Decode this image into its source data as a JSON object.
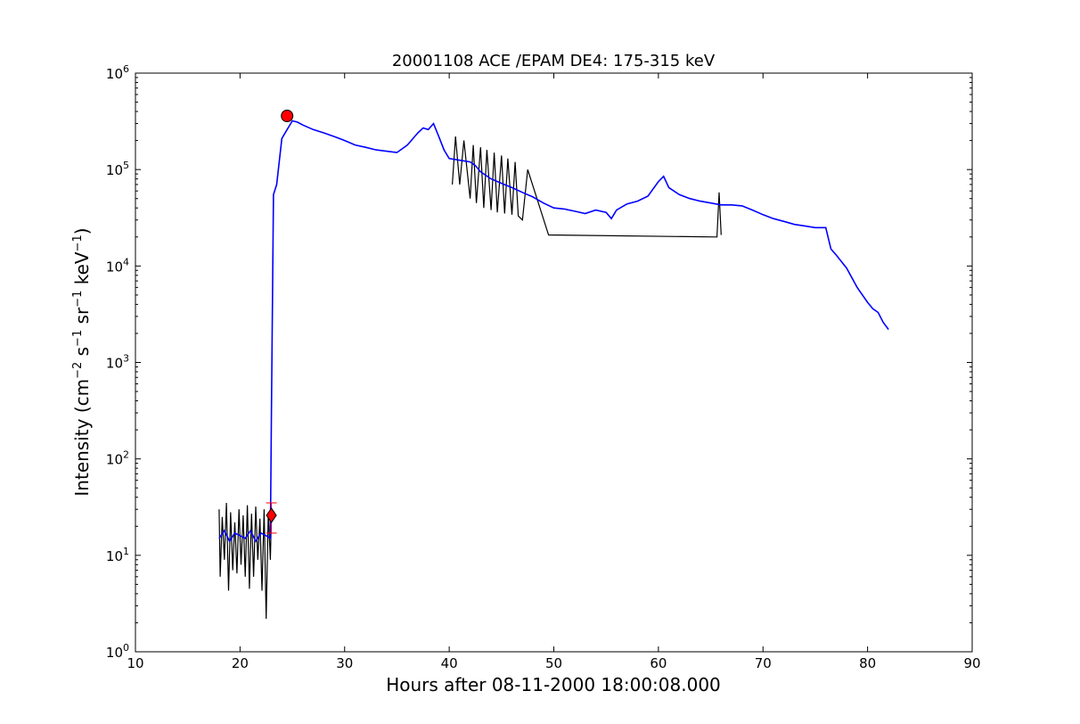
{
  "chart_data": {
    "type": "line",
    "title": "20001108 ACE /EPAM DE4: 175-315 keV",
    "xlabel": "Hours after 08-11-2000 18:00:08.000",
    "ylabel_text": "Intensity (cm",
    "ylabel_sup1": "−2",
    "ylabel_s": " s",
    "ylabel_sup2": "−1",
    "ylabel_sr": " sr",
    "ylabel_sup3": "−1",
    "ylabel_kev": " keV",
    "ylabel_sup4": "−1",
    "ylabel_close": ")",
    "xlim": [
      10,
      90
    ],
    "ylim": [
      1,
      1000000
    ],
    "yscale": "log",
    "grid": false,
    "xticks": [
      10,
      20,
      30,
      40,
      50,
      60,
      70,
      80,
      90
    ],
    "yticks_exponents": [
      0,
      1,
      2,
      3,
      4,
      5,
      6
    ],
    "ytick_base": "10",
    "colors": {
      "raw": "#000000",
      "smoothed": "#0000ff",
      "marker": "#ff0000"
    },
    "series": [
      {
        "style": "raw-black",
        "x": [
          18.0,
          18.1,
          18.3,
          18.5,
          18.7,
          18.9,
          19.1,
          19.3,
          19.5,
          19.7,
          19.9,
          20.1,
          20.3,
          20.5,
          20.7,
          20.9,
          21.1,
          21.3,
          21.5,
          21.7,
          21.9,
          22.1,
          22.3,
          22.5,
          22.7,
          22.9,
          23.0
        ],
        "y": [
          30,
          6,
          25,
          9,
          35,
          4.3,
          28,
          7,
          22,
          6.5,
          30,
          8,
          26,
          6,
          33,
          4.5,
          27,
          6,
          32,
          9,
          24,
          4.3,
          30,
          2.2,
          28,
          9,
          26
        ]
      },
      {
        "style": "raw-black-spikes",
        "x": [
          40.3,
          40.6,
          41.0,
          41.4,
          42.0,
          42.3,
          42.6,
          43.0,
          43.3,
          43.6,
          44.0,
          44.3,
          44.6,
          45.0,
          45.3,
          45.6,
          46.0,
          46.3,
          46.6,
          47.0,
          47.5,
          49.5,
          65.6,
          65.8,
          66.0
        ],
        "y": [
          70000,
          220000,
          70000,
          200000,
          50000,
          180000,
          45000,
          170000,
          40000,
          160000,
          38000,
          150000,
          36000,
          140000,
          35000,
          130000,
          34000,
          120000,
          33000,
          30000,
          100000,
          21000,
          20000,
          58000,
          21000
        ]
      },
      {
        "style": "smoothed-blue",
        "x": [
          18.0,
          18.5,
          19.0,
          19.5,
          20.0,
          20.5,
          21.0,
          21.5,
          22.0,
          22.5,
          22.9,
          23.0,
          23.2,
          23.5,
          24.0,
          24.5,
          25.0,
          25.5,
          26.0,
          27.0,
          28.0,
          29.0,
          30.0,
          31.0,
          32.0,
          33.0,
          34.0,
          35.0,
          36.0,
          37.0,
          37.5,
          38.0,
          38.5,
          39.0,
          39.5,
          40.0,
          41.0,
          42.0,
          42.5,
          43.0,
          44.0,
          45.0,
          46.0,
          47.0,
          48.0,
          49.0,
          50.0,
          51.0,
          52.0,
          53.0,
          54.0,
          55.0,
          55.5,
          56.0,
          57.0,
          58.0,
          59.0,
          60.0,
          60.5,
          61.0,
          62.0,
          63.0,
          64.0,
          65.0,
          66.0,
          67.0,
          68.0,
          69.0,
          70.0,
          71.0,
          72.0,
          73.0,
          74.0,
          75.0,
          76.0,
          76.5,
          77.0,
          78.0,
          79.0,
          80.0,
          80.5,
          81.0,
          81.5,
          82.0
        ],
        "y": [
          15,
          18,
          14,
          17,
          16,
          15,
          18,
          14,
          17,
          16,
          15,
          300,
          55000,
          70000,
          210000,
          260000,
          320000,
          310000,
          290000,
          260000,
          240000,
          220000,
          200000,
          180000,
          170000,
          160000,
          155000,
          150000,
          180000,
          240000,
          270000,
          260000,
          300000,
          220000,
          160000,
          130000,
          125000,
          120000,
          110000,
          95000,
          80000,
          72000,
          65000,
          58000,
          52000,
          45000,
          40000,
          39000,
          37000,
          35000,
          38000,
          36000,
          31000,
          38000,
          44000,
          47000,
          53000,
          75000,
          85000,
          65000,
          55000,
          50000,
          47000,
          45000,
          43000,
          43000,
          42000,
          38000,
          34000,
          31000,
          29000,
          27000,
          26000,
          25000,
          25000,
          15000,
          13000,
          9500,
          6000,
          4200,
          3600,
          3300,
          2600,
          2200
        ]
      }
    ],
    "markers": [
      {
        "shape": "circle",
        "x": 24.5,
        "y": 360000
      },
      {
        "shape": "diamond",
        "x": 23.0,
        "y": 26,
        "err_low": 17,
        "err_high": 35
      }
    ]
  }
}
